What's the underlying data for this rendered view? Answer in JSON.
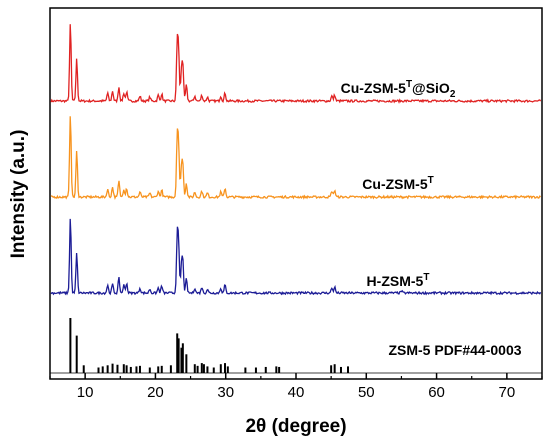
{
  "chart_data": {
    "type": "line",
    "title": "",
    "xlabel": "2θ (degree)",
    "ylabel": "Intensity (a.u.)",
    "xlim": [
      5,
      75
    ],
    "x_ticks": [
      10,
      20,
      30,
      40,
      50,
      60,
      70
    ],
    "y_ticks": [],
    "grid": false,
    "legend": "inline-labels-right",
    "series": [
      {
        "name": "Cu-ZSM-5T@SiO2",
        "label_main": "Cu-ZSM-5",
        "label_sup": "T",
        "label_tail": "@SiO",
        "label_sub": "2",
        "color": "#e02222",
        "peaks": [
          [
            7.9,
            78
          ],
          [
            8.8,
            42
          ],
          [
            13.2,
            8
          ],
          [
            13.9,
            10
          ],
          [
            14.8,
            14
          ],
          [
            15.5,
            8
          ],
          [
            15.9,
            9
          ],
          [
            17.8,
            5
          ],
          [
            19.2,
            4
          ],
          [
            20.4,
            6
          ],
          [
            20.9,
            7
          ],
          [
            23.1,
            56
          ],
          [
            23.3,
            45
          ],
          [
            23.7,
            28
          ],
          [
            23.9,
            34
          ],
          [
            24.4,
            16
          ],
          [
            25.6,
            5
          ],
          [
            26.6,
            6
          ],
          [
            27.4,
            4
          ],
          [
            29.3,
            5
          ],
          [
            29.9,
            8
          ],
          [
            45.1,
            5
          ],
          [
            45.5,
            6
          ]
        ]
      },
      {
        "name": "Cu-ZSM-5T",
        "label_main": "Cu-ZSM-5",
        "label_sup": "T",
        "label_tail": "",
        "label_sub": "",
        "color": "#f7931e",
        "peaks": [
          [
            7.9,
            84
          ],
          [
            8.8,
            46
          ],
          [
            13.2,
            8
          ],
          [
            13.9,
            10
          ],
          [
            14.8,
            16
          ],
          [
            15.5,
            8
          ],
          [
            15.9,
            9
          ],
          [
            17.8,
            5
          ],
          [
            19.2,
            4
          ],
          [
            20.4,
            6
          ],
          [
            20.9,
            7
          ],
          [
            23.1,
            58
          ],
          [
            23.3,
            46
          ],
          [
            23.7,
            28
          ],
          [
            23.9,
            30
          ],
          [
            24.4,
            14
          ],
          [
            25.6,
            5
          ],
          [
            26.6,
            6
          ],
          [
            27.4,
            4
          ],
          [
            29.3,
            5
          ],
          [
            29.9,
            9
          ],
          [
            45.1,
            6
          ],
          [
            45.5,
            7
          ]
        ]
      },
      {
        "name": "H-ZSM-5T",
        "label_main": "H-ZSM-5",
        "label_sup": "T",
        "label_tail": "",
        "label_sub": "",
        "color": "#1c1c96",
        "peaks": [
          [
            7.9,
            76
          ],
          [
            8.8,
            40
          ],
          [
            13.2,
            8
          ],
          [
            13.9,
            9
          ],
          [
            14.8,
            15
          ],
          [
            15.5,
            8
          ],
          [
            15.9,
            10
          ],
          [
            17.8,
            5
          ],
          [
            19.2,
            4
          ],
          [
            20.4,
            5
          ],
          [
            20.9,
            7
          ],
          [
            23.1,
            54
          ],
          [
            23.3,
            44
          ],
          [
            23.7,
            26
          ],
          [
            23.9,
            30
          ],
          [
            24.4,
            14
          ],
          [
            25.6,
            5
          ],
          [
            26.6,
            6
          ],
          [
            27.4,
            4
          ],
          [
            29.3,
            5
          ],
          [
            29.9,
            8
          ],
          [
            45.1,
            5
          ],
          [
            45.5,
            6
          ],
          [
            55.0,
            2
          ]
        ]
      }
    ],
    "reference": {
      "name": "ZSM-5 PDF#44-0003",
      "color": "#000000",
      "lines": [
        [
          7.9,
          100
        ],
        [
          8.8,
          68
        ],
        [
          9.8,
          14
        ],
        [
          11.9,
          10
        ],
        [
          12.5,
          12
        ],
        [
          13.2,
          14
        ],
        [
          13.9,
          17
        ],
        [
          14.6,
          15
        ],
        [
          15.5,
          16
        ],
        [
          15.9,
          14
        ],
        [
          16.5,
          11
        ],
        [
          17.3,
          12
        ],
        [
          17.8,
          13
        ],
        [
          19.2,
          10
        ],
        [
          20.4,
          12
        ],
        [
          20.9,
          13
        ],
        [
          22.2,
          14
        ],
        [
          23.1,
          72
        ],
        [
          23.3,
          63
        ],
        [
          23.7,
          46
        ],
        [
          23.9,
          54
        ],
        [
          24.4,
          34
        ],
        [
          25.6,
          16
        ],
        [
          26.0,
          13
        ],
        [
          26.6,
          18
        ],
        [
          26.9,
          16
        ],
        [
          27.4,
          12
        ],
        [
          28.3,
          10
        ],
        [
          29.3,
          16
        ],
        [
          29.9,
          18
        ],
        [
          30.3,
          12
        ],
        [
          32.8,
          10
        ],
        [
          34.3,
          10
        ],
        [
          35.7,
          11
        ],
        [
          37.2,
          12
        ],
        [
          37.6,
          11
        ],
        [
          45.0,
          14
        ],
        [
          45.5,
          16
        ],
        [
          46.4,
          11
        ],
        [
          47.4,
          12
        ]
      ]
    }
  }
}
